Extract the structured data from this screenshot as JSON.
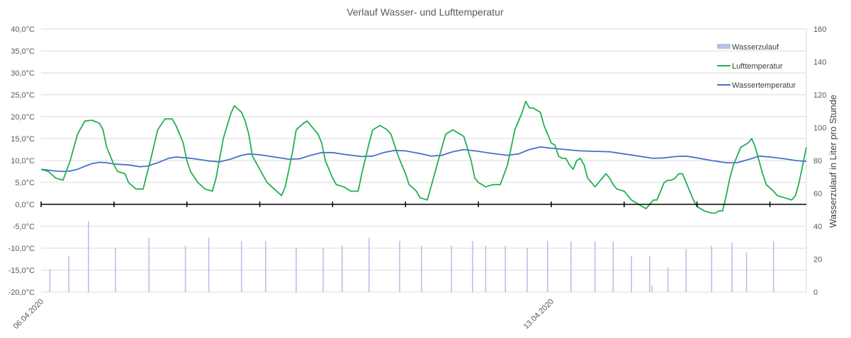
{
  "chart_data": {
    "type": "line",
    "title": "Verlauf Wasser- und Lufttemperatur",
    "xlabel": "",
    "ylabel": "",
    "y2label": "Wasserzulauf in Liter pro Stunde",
    "x_range_days": [
      0,
      10.5
    ],
    "x_tick_labels": [
      {
        "day": 0,
        "label": "06.04.2020"
      },
      {
        "day": 7,
        "label": "13.04.2020"
      }
    ],
    "ylim": [
      -20,
      40
    ],
    "y_ticks": [
      40,
      35,
      30,
      25,
      20,
      15,
      10,
      5,
      0,
      -5,
      -10,
      -15,
      -20
    ],
    "y_tick_labels": [
      "40,0°C",
      "35,0°C",
      "30,0°C",
      "25,0°C",
      "20,0°C",
      "15,0°C",
      "10,0°C",
      "5,0°C",
      "0,0°C",
      "-5,0°C",
      "-10,0°C",
      "-15,0°C",
      "-20,0°C"
    ],
    "y2lim": [
      0,
      160
    ],
    "y2_tick_labels": [
      "160",
      "140",
      "120",
      "100",
      "80",
      "60",
      "40",
      "20",
      "0"
    ],
    "grid": true,
    "legend_position": "top-right",
    "colors": {
      "air": "#1fb150",
      "water": "#4472c4",
      "inflow": "#b4c3e3",
      "axis": "#000000",
      "grid": "#d9d9d9"
    },
    "series": [
      {
        "name": "Wasserzulauf",
        "type": "bar",
        "axis": "secondary",
        "points": [
          [
            0.12,
            14
          ],
          [
            0.38,
            22
          ],
          [
            0.65,
            43
          ],
          [
            1.02,
            27
          ],
          [
            1.48,
            33
          ],
          [
            1.98,
            28
          ],
          [
            2.3,
            33
          ],
          [
            2.75,
            31
          ],
          [
            3.08,
            31
          ],
          [
            3.5,
            27
          ],
          [
            3.87,
            27
          ],
          [
            4.13,
            28
          ],
          [
            4.5,
            33
          ],
          [
            4.92,
            31
          ],
          [
            5.22,
            28
          ],
          [
            5.63,
            28
          ],
          [
            5.92,
            31
          ],
          [
            6.1,
            28
          ],
          [
            6.37,
            28
          ],
          [
            6.67,
            27
          ],
          [
            6.95,
            31
          ],
          [
            7.27,
            31
          ],
          [
            7.6,
            31
          ],
          [
            7.85,
            31
          ],
          [
            8.1,
            22
          ],
          [
            8.35,
            22
          ],
          [
            8.38,
            4
          ],
          [
            8.6,
            15
          ],
          [
            8.85,
            26
          ],
          [
            9.2,
            28
          ],
          [
            9.48,
            30
          ],
          [
            9.68,
            24
          ],
          [
            10.05,
            31
          ]
        ]
      },
      {
        "name": "Lufttemperatur",
        "type": "line",
        "axis": "primary",
        "points": [
          [
            0,
            8
          ],
          [
            0.1,
            7.5
          ],
          [
            0.2,
            6
          ],
          [
            0.3,
            5.5
          ],
          [
            0.4,
            10
          ],
          [
            0.5,
            16
          ],
          [
            0.6,
            19
          ],
          [
            0.7,
            19.2
          ],
          [
            0.8,
            18.5
          ],
          [
            0.85,
            17
          ],
          [
            0.9,
            13
          ],
          [
            1.0,
            9
          ],
          [
            1.05,
            7.5
          ],
          [
            1.15,
            7
          ],
          [
            1.2,
            5
          ],
          [
            1.3,
            3.5
          ],
          [
            1.4,
            3.5
          ],
          [
            1.5,
            10
          ],
          [
            1.6,
            17
          ],
          [
            1.7,
            19.5
          ],
          [
            1.8,
            19.5
          ],
          [
            1.85,
            18
          ],
          [
            1.95,
            14
          ],
          [
            2.0,
            10
          ],
          [
            2.05,
            7.5
          ],
          [
            2.15,
            5
          ],
          [
            2.25,
            3.5
          ],
          [
            2.35,
            3
          ],
          [
            2.4,
            6
          ],
          [
            2.5,
            15
          ],
          [
            2.6,
            20.5
          ],
          [
            2.65,
            22.5
          ],
          [
            2.75,
            21
          ],
          [
            2.8,
            19
          ],
          [
            2.85,
            16
          ],
          [
            2.9,
            11
          ],
          [
            3.0,
            8
          ],
          [
            3.1,
            5
          ],
          [
            3.2,
            3.5
          ],
          [
            3.3,
            2
          ],
          [
            3.35,
            4
          ],
          [
            3.45,
            12
          ],
          [
            3.5,
            17
          ],
          [
            3.6,
            18.5
          ],
          [
            3.65,
            19
          ],
          [
            3.75,
            17
          ],
          [
            3.8,
            16
          ],
          [
            3.85,
            14
          ],
          [
            3.9,
            10
          ],
          [
            4.0,
            6
          ],
          [
            4.05,
            4.5
          ],
          [
            4.15,
            4
          ],
          [
            4.25,
            3
          ],
          [
            4.35,
            3
          ],
          [
            4.4,
            7
          ],
          [
            4.5,
            14
          ],
          [
            4.55,
            17
          ],
          [
            4.65,
            18
          ],
          [
            4.75,
            17
          ],
          [
            4.8,
            16
          ],
          [
            4.9,
            11
          ],
          [
            5.0,
            7
          ],
          [
            5.05,
            4.5
          ],
          [
            5.15,
            3
          ],
          [
            5.2,
            1.5
          ],
          [
            5.3,
            1
          ],
          [
            5.4,
            7
          ],
          [
            5.5,
            13
          ],
          [
            5.55,
            16
          ],
          [
            5.65,
            17
          ],
          [
            5.75,
            16
          ],
          [
            5.8,
            15.5
          ],
          [
            5.9,
            10
          ],
          [
            5.95,
            6
          ],
          [
            6.0,
            5
          ],
          [
            6.1,
            4
          ],
          [
            6.2,
            4.5
          ],
          [
            6.3,
            4.5
          ],
          [
            6.4,
            9
          ],
          [
            6.5,
            17
          ],
          [
            6.6,
            21
          ],
          [
            6.65,
            23.5
          ],
          [
            6.7,
            22
          ],
          [
            6.75,
            22
          ],
          [
            6.85,
            21
          ],
          [
            6.9,
            18
          ],
          [
            6.95,
            16
          ],
          [
            7.0,
            14
          ],
          [
            7.05,
            13.5
          ],
          [
            7.1,
            11
          ],
          [
            7.15,
            10.5
          ],
          [
            7.2,
            10.5
          ],
          [
            7.25,
            9
          ],
          [
            7.3,
            8
          ],
          [
            7.35,
            10
          ],
          [
            7.4,
            10.5
          ],
          [
            7.45,
            9
          ],
          [
            7.5,
            6
          ],
          [
            7.55,
            5
          ],
          [
            7.6,
            4
          ],
          [
            7.7,
            6
          ],
          [
            7.75,
            7
          ],
          [
            7.8,
            6
          ],
          [
            7.85,
            4.5
          ],
          [
            7.9,
            3.5
          ],
          [
            8.0,
            3
          ],
          [
            8.05,
            2
          ],
          [
            8.1,
            1
          ],
          [
            8.2,
            0
          ],
          [
            8.3,
            -1
          ],
          [
            8.35,
            0
          ],
          [
            8.4,
            1
          ],
          [
            8.45,
            1
          ],
          [
            8.5,
            3
          ],
          [
            8.55,
            5
          ],
          [
            8.6,
            5.5
          ],
          [
            8.65,
            5.5
          ],
          [
            8.7,
            6
          ],
          [
            8.75,
            7
          ],
          [
            8.8,
            7
          ],
          [
            8.85,
            5
          ],
          [
            8.9,
            3
          ],
          [
            8.95,
            1
          ],
          [
            9.0,
            -0.5
          ],
          [
            9.1,
            -1.5
          ],
          [
            9.2,
            -2
          ],
          [
            9.25,
            -2
          ],
          [
            9.3,
            -1.5
          ],
          [
            9.35,
            -1.5
          ],
          [
            9.4,
            2
          ],
          [
            9.45,
            6
          ],
          [
            9.5,
            9
          ],
          [
            9.55,
            11
          ],
          [
            9.6,
            13
          ],
          [
            9.7,
            14
          ],
          [
            9.75,
            15
          ],
          [
            9.8,
            13
          ],
          [
            9.85,
            10
          ],
          [
            9.9,
            7
          ],
          [
            9.95,
            4.5
          ],
          [
            10.05,
            3
          ],
          [
            10.1,
            2
          ],
          [
            10.2,
            1.5
          ],
          [
            10.3,
            1
          ],
          [
            10.35,
            2
          ],
          [
            10.4,
            5
          ],
          [
            10.45,
            9
          ],
          [
            10.5,
            13
          ]
        ]
      },
      {
        "name": "Wassertemperatur",
        "type": "line",
        "axis": "primary",
        "points": [
          [
            0,
            8
          ],
          [
            0.1,
            7.8
          ],
          [
            0.2,
            7.6
          ],
          [
            0.3,
            7.5
          ],
          [
            0.4,
            7.6
          ],
          [
            0.5,
            8
          ],
          [
            0.6,
            8.7
          ],
          [
            0.7,
            9.3
          ],
          [
            0.8,
            9.6
          ],
          [
            0.9,
            9.5
          ],
          [
            1.0,
            9.2
          ],
          [
            1.2,
            9
          ],
          [
            1.35,
            8.6
          ],
          [
            1.45,
            8.7
          ],
          [
            1.6,
            9.5
          ],
          [
            1.75,
            10.5
          ],
          [
            1.85,
            10.8
          ],
          [
            2.0,
            10.6
          ],
          [
            2.15,
            10.3
          ],
          [
            2.3,
            9.9
          ],
          [
            2.45,
            9.7
          ],
          [
            2.6,
            10.3
          ],
          [
            2.75,
            11.2
          ],
          [
            2.85,
            11.5
          ],
          [
            3.0,
            11.3
          ],
          [
            3.2,
            10.8
          ],
          [
            3.4,
            10.3
          ],
          [
            3.55,
            10.4
          ],
          [
            3.7,
            11.2
          ],
          [
            3.85,
            11.8
          ],
          [
            4.0,
            11.8
          ],
          [
            4.2,
            11.3
          ],
          [
            4.4,
            10.9
          ],
          [
            4.55,
            11
          ],
          [
            4.7,
            11.8
          ],
          [
            4.85,
            12.3
          ],
          [
            5.0,
            12.2
          ],
          [
            5.2,
            11.6
          ],
          [
            5.35,
            11
          ],
          [
            5.5,
            11.2
          ],
          [
            5.65,
            12
          ],
          [
            5.8,
            12.5
          ],
          [
            6.0,
            12.1
          ],
          [
            6.2,
            11.6
          ],
          [
            6.4,
            11.2
          ],
          [
            6.55,
            11.5
          ],
          [
            6.7,
            12.5
          ],
          [
            6.85,
            13.1
          ],
          [
            7.0,
            12.8
          ],
          [
            7.2,
            12.5
          ],
          [
            7.4,
            12.2
          ],
          [
            7.6,
            12.1
          ],
          [
            7.8,
            12
          ],
          [
            8.0,
            11.5
          ],
          [
            8.2,
            11
          ],
          [
            8.4,
            10.5
          ],
          [
            8.55,
            10.6
          ],
          [
            8.7,
            10.9
          ],
          [
            8.85,
            11
          ],
          [
            9.0,
            10.6
          ],
          [
            9.2,
            10
          ],
          [
            9.4,
            9.5
          ],
          [
            9.55,
            9.5
          ],
          [
            9.7,
            10.2
          ],
          [
            9.85,
            11
          ],
          [
            10.0,
            10.8
          ],
          [
            10.2,
            10.4
          ],
          [
            10.35,
            10
          ],
          [
            10.5,
            9.8
          ]
        ]
      }
    ]
  }
}
